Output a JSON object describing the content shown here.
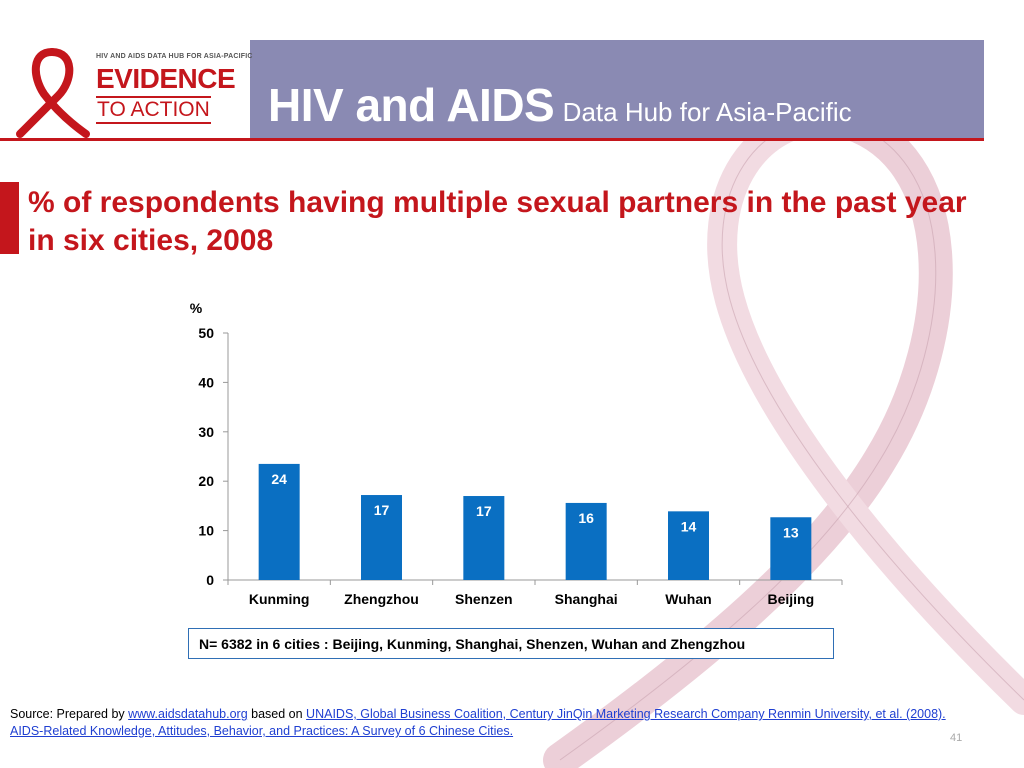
{
  "header": {
    "logo_small_text": "HIV AND AIDS DATA HUB FOR ASIA-PACIFIC",
    "logo_line1": "EVIDENCE",
    "logo_line2": "TO ACTION",
    "title_main": "HIV and AIDS",
    "title_sub": "Data Hub for Asia-Pacific"
  },
  "slide": {
    "title": "% of respondents having multiple sexual partners in the past year in six cities, 2008",
    "note": "N= 6382 in 6 cities : Beijing, Kunming, Shanghai, Shenzen, Wuhan and Zhengzhou",
    "page_number": "41"
  },
  "source": {
    "prefix": "Source: Prepared by ",
    "link1": "www.aidsdatahub.org",
    "middle": "  based on ",
    "link2": "UNAIDS, Global Business Coalition, Century JinQin Marketing Research Company Renmin University, et al. (2008). AIDS-Related Knowledge, Attitudes, Behavior, and Practices: A Survey of 6 Chinese Cities."
  },
  "colors": {
    "brand_red": "#c4161c",
    "header_purple": "#8a8ab3",
    "bar_blue": "#0a6fc2",
    "ribbon_pink": "#e8c7d0"
  },
  "chart_data": {
    "type": "bar",
    "categories": [
      "Kunming",
      "Zhengzhou",
      "Shenzen",
      "Shanghai",
      "Wuhan",
      "Beijing"
    ],
    "values": [
      23.5,
      17.2,
      17.0,
      15.6,
      13.9,
      12.7
    ],
    "data_labels": [
      "24",
      "17",
      "17",
      "16",
      "14",
      "13"
    ],
    "title": "",
    "xlabel": "",
    "ylabel": "%",
    "ylim": [
      0,
      50
    ],
    "yticks": [
      "0",
      "10",
      "20",
      "30",
      "40",
      "50"
    ],
    "grid": false,
    "legend": "none"
  }
}
